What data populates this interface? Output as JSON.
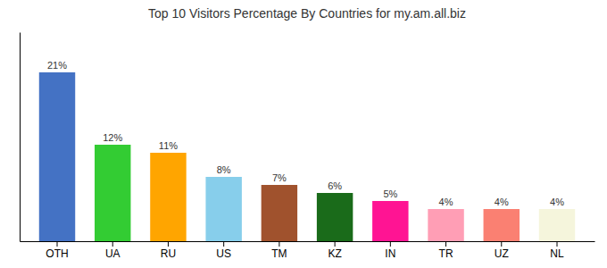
{
  "chart_data": {
    "type": "bar",
    "title": "Top 10 Visitors Percentage By Countries for my.am.all.biz",
    "categories": [
      "OTH",
      "UA",
      "RU",
      "US",
      "TM",
      "KZ",
      "IN",
      "TR",
      "UZ",
      "NL"
    ],
    "values": [
      21,
      12,
      11,
      8,
      7,
      6,
      5,
      4,
      4,
      4
    ],
    "value_labels": [
      "21%",
      "12%",
      "11%",
      "8%",
      "7%",
      "6%",
      "5%",
      "4%",
      "4%",
      "4%"
    ],
    "data_labels": true,
    "colors": [
      "#4472C4",
      "#33CC33",
      "#FFA500",
      "#87CEEB",
      "#A0522D",
      "#1A6B1A",
      "#FF1493",
      "#FF9EB5",
      "#FA8072",
      "#F5F5DC"
    ],
    "ylim": [
      0,
      26
    ],
    "grid": false,
    "tick_labels": "x"
  }
}
